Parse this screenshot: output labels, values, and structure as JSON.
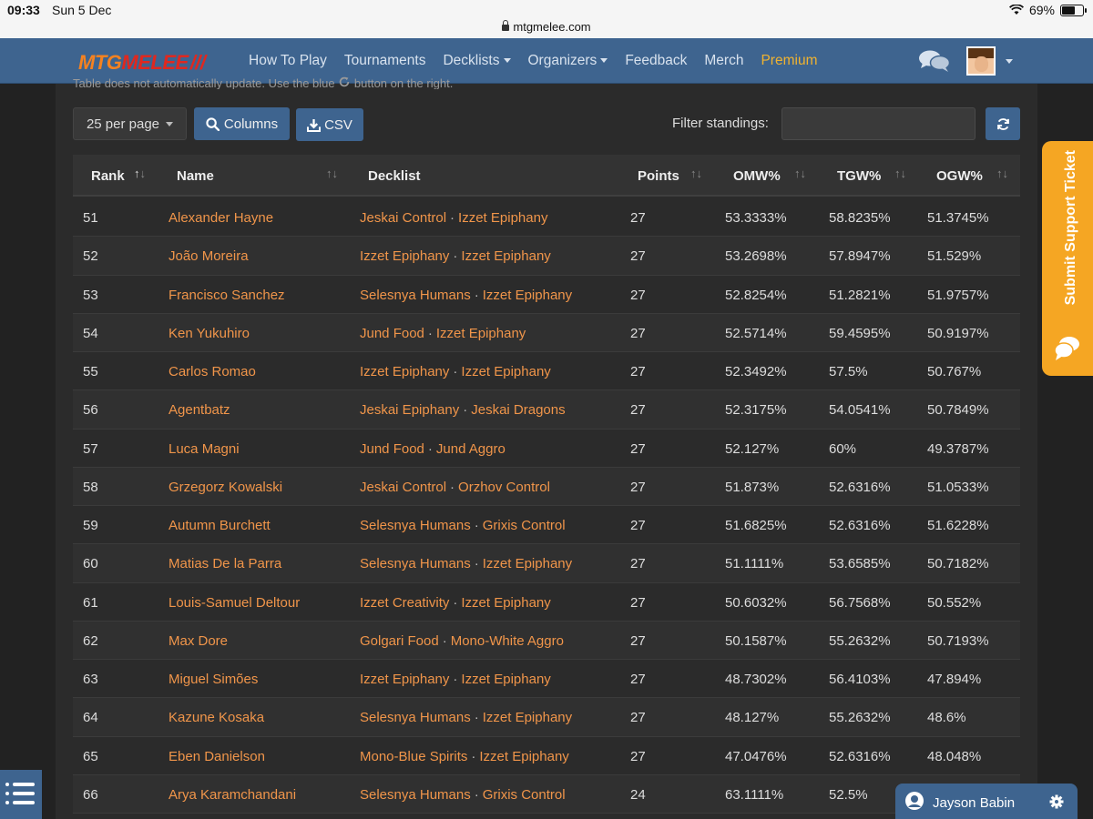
{
  "status_bar": {
    "time": "09:33",
    "date": "Sun 5 Dec",
    "battery": "69%",
    "battery_level": 0.69
  },
  "url": "mtgmelee.com",
  "logo": {
    "part1": "MTG",
    "part2": "MELEE"
  },
  "nav": [
    {
      "label": "How To Play",
      "dropdown": false
    },
    {
      "label": "Tournaments",
      "dropdown": false
    },
    {
      "label": "Decklists",
      "dropdown": true
    },
    {
      "label": "Organizers",
      "dropdown": true
    },
    {
      "label": "Feedback",
      "dropdown": false
    },
    {
      "label": "Merch",
      "dropdown": false
    },
    {
      "label": "Premium",
      "dropdown": false
    }
  ],
  "hint_text": "Table does not automatically update. Use the blue",
  "hint_text_2": "button on the right.",
  "toolbar": {
    "per_page": "25 per page",
    "columns": "Columns",
    "csv": "CSV",
    "filter_label": "Filter standings:",
    "filter_value": ""
  },
  "table": {
    "headers": {
      "rank": "Rank",
      "name": "Name",
      "decklist": "Decklist",
      "points": "Points",
      "omw": "OMW%",
      "tgw": "TGW%",
      "ogw": "OGW%"
    },
    "rows": [
      {
        "rank": "51",
        "name": "Alexander Hayne",
        "decks": [
          "Jeskai Control",
          "Izzet Epiphany"
        ],
        "points": "27",
        "omw": "53.3333%",
        "tgw": "58.8235%",
        "ogw": "51.3745%"
      },
      {
        "rank": "52",
        "name": "João Moreira",
        "decks": [
          "Izzet Epiphany",
          "Izzet Epiphany"
        ],
        "points": "27",
        "omw": "53.2698%",
        "tgw": "57.8947%",
        "ogw": "51.529%"
      },
      {
        "rank": "53",
        "name": "Francisco Sanchez",
        "decks": [
          "Selesnya Humans",
          "Izzet Epiphany"
        ],
        "points": "27",
        "omw": "52.8254%",
        "tgw": "51.2821%",
        "ogw": "51.9757%"
      },
      {
        "rank": "54",
        "name": "Ken Yukuhiro",
        "decks": [
          "Jund Food",
          "Izzet Epiphany"
        ],
        "points": "27",
        "omw": "52.5714%",
        "tgw": "59.4595%",
        "ogw": "50.9197%"
      },
      {
        "rank": "55",
        "name": "Carlos Romao",
        "decks": [
          "Izzet Epiphany",
          "Izzet Epiphany"
        ],
        "points": "27",
        "omw": "52.3492%",
        "tgw": "57.5%",
        "ogw": "50.767%"
      },
      {
        "rank": "56",
        "name": "Agentbatz",
        "decks": [
          "Jeskai Epiphany",
          "Jeskai Dragons"
        ],
        "points": "27",
        "omw": "52.3175%",
        "tgw": "54.0541%",
        "ogw": "50.7849%"
      },
      {
        "rank": "57",
        "name": "Luca Magni",
        "decks": [
          "Jund Food",
          "Jund Aggro"
        ],
        "points": "27",
        "omw": "52.127%",
        "tgw": "60%",
        "ogw": "49.3787%"
      },
      {
        "rank": "58",
        "name": "Grzegorz Kowalski",
        "decks": [
          "Jeskai Control",
          "Orzhov Control"
        ],
        "points": "27",
        "omw": "51.873%",
        "tgw": "52.6316%",
        "ogw": "51.0533%"
      },
      {
        "rank": "59",
        "name": "Autumn Burchett",
        "decks": [
          "Selesnya Humans",
          "Grixis Control"
        ],
        "points": "27",
        "omw": "51.6825%",
        "tgw": "52.6316%",
        "ogw": "51.6228%"
      },
      {
        "rank": "60",
        "name": "Matias De la Parra",
        "decks": [
          "Selesnya Humans",
          "Izzet Epiphany"
        ],
        "points": "27",
        "omw": "51.1111%",
        "tgw": "53.6585%",
        "ogw": "50.7182%"
      },
      {
        "rank": "61",
        "name": "Louis-Samuel Deltour",
        "decks": [
          "Izzet Creativity",
          "Izzet Epiphany"
        ],
        "points": "27",
        "omw": "50.6032%",
        "tgw": "56.7568%",
        "ogw": "50.552%"
      },
      {
        "rank": "62",
        "name": "Max Dore",
        "decks": [
          "Golgari Food",
          "Mono-White Aggro"
        ],
        "points": "27",
        "omw": "50.1587%",
        "tgw": "55.2632%",
        "ogw": "50.7193%"
      },
      {
        "rank": "63",
        "name": "Miguel Simões",
        "decks": [
          "Izzet Epiphany",
          "Izzet Epiphany"
        ],
        "points": "27",
        "omw": "48.7302%",
        "tgw": "56.4103%",
        "ogw": "47.894%"
      },
      {
        "rank": "64",
        "name": "Kazune Kosaka",
        "decks": [
          "Selesnya Humans",
          "Izzet Epiphany"
        ],
        "points": "27",
        "omw": "48.127%",
        "tgw": "55.2632%",
        "ogw": "48.6%"
      },
      {
        "rank": "65",
        "name": "Eben Danielson",
        "decks": [
          "Mono-Blue Spirits",
          "Izzet Epiphany"
        ],
        "points": "27",
        "omw": "47.0476%",
        "tgw": "52.6316%",
        "ogw": "48.048%"
      },
      {
        "rank": "66",
        "name": "Arya Karamchandani",
        "decks": [
          "Selesnya Humans",
          "Grixis Control"
        ],
        "points": "24",
        "omw": "63.1111%",
        "tgw": "52.5%",
        "ogw": ""
      }
    ]
  },
  "support_tab": "Submit Support Ticket",
  "user_chip": {
    "name": "Jayson Babin"
  },
  "colors": {
    "accent": "#3e648f",
    "link": "#f0954a",
    "premium": "#f0b330",
    "support": "#f5a623"
  },
  "icons": {
    "chat": "chat-bubbles-icon",
    "search": "search-icon",
    "download": "download-icon",
    "refresh": "refresh-icon",
    "menu": "list-menu-icon",
    "user": "user-icon",
    "gear": "gear-icon"
  }
}
